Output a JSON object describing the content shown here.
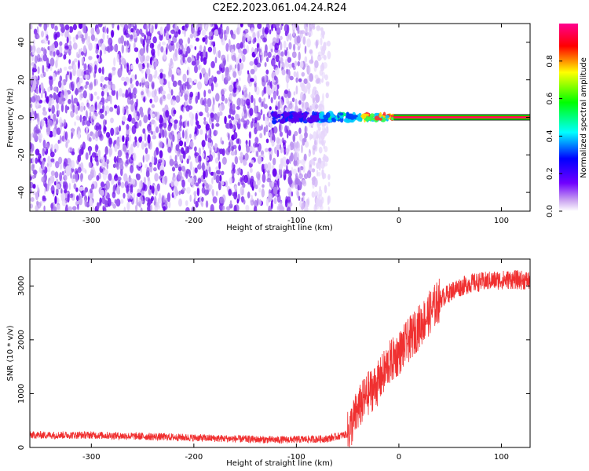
{
  "title": "C2E2.2023.061.04.24.R24",
  "chart_data": [
    {
      "type": "heatmap",
      "name": "spectrogram",
      "xlabel": "Height of straight line (km)",
      "ylabel": "Frequency (Hz)",
      "xlim": [
        -360,
        128
      ],
      "ylim": [
        -50,
        50
      ],
      "xticks": [
        -300,
        -200,
        -100,
        0,
        100
      ],
      "yticks": [
        -40,
        -20,
        0,
        20,
        40
      ],
      "noise_region_x": [
        -360,
        -68
      ],
      "signal_line_x": [
        -125,
        128
      ],
      "signal_freq_hz": 0,
      "colorbar": {
        "label": "Normalized spectral amplitude",
        "range": [
          0,
          1
        ],
        "ticks": [
          0.0,
          0.2,
          0.4,
          0.6,
          0.8
        ],
        "colors": [
          "#ffffff",
          "#c8a0f0",
          "#7000ff",
          "#0000ff",
          "#00ffff",
          "#00ff00",
          "#ffff00",
          "#ff0000",
          "#ff0090"
        ]
      }
    },
    {
      "type": "line",
      "name": "snr",
      "xlabel": "Height of straight line (km)",
      "ylabel": "SNR (10 * v/v)",
      "xlim": [
        -360,
        128
      ],
      "ylim": [
        0,
        3500
      ],
      "xticks": [
        -300,
        -200,
        -100,
        0,
        100
      ],
      "yticks": [
        0,
        1000,
        2000,
        3000
      ],
      "color": "#f03030",
      "trend": [
        {
          "x": -360,
          "y": 230
        },
        {
          "x": -300,
          "y": 230
        },
        {
          "x": -200,
          "y": 180
        },
        {
          "x": -120,
          "y": 140
        },
        {
          "x": -70,
          "y": 160
        },
        {
          "x": -50,
          "y": 250
        },
        {
          "x": -40,
          "y": 700
        },
        {
          "x": -30,
          "y": 1000
        },
        {
          "x": -20,
          "y": 1200
        },
        {
          "x": -10,
          "y": 1550
        },
        {
          "x": 0,
          "y": 1750
        },
        {
          "x": 10,
          "y": 2000
        },
        {
          "x": 20,
          "y": 2250
        },
        {
          "x": 30,
          "y": 2500
        },
        {
          "x": 40,
          "y": 2750
        },
        {
          "x": 55,
          "y": 2950
        },
        {
          "x": 70,
          "y": 3050
        },
        {
          "x": 90,
          "y": 3100
        },
        {
          "x": 110,
          "y": 3120
        },
        {
          "x": 128,
          "y": 3100
        }
      ]
    }
  ]
}
